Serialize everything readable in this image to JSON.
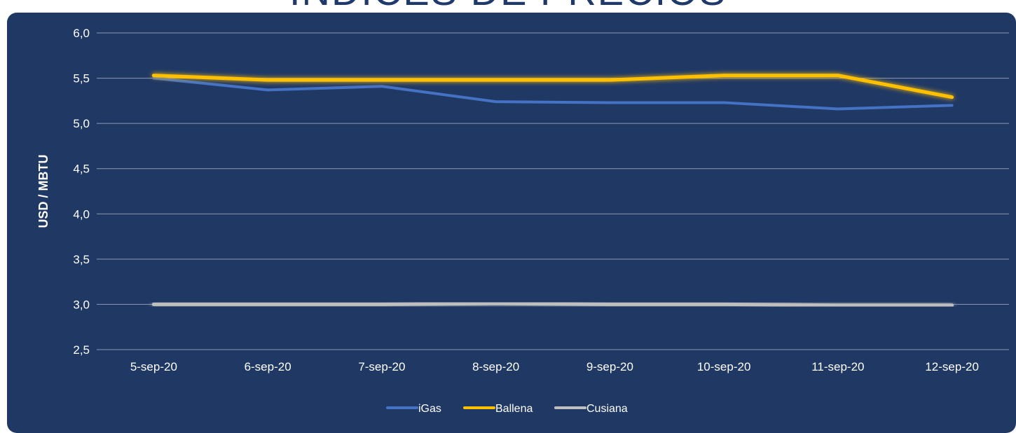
{
  "page": {
    "title": "INDICES DE PRECIOS"
  },
  "chart_data": {
    "type": "line",
    "title": "INDICES DE PRECIOS",
    "xlabel": "",
    "ylabel": "USD / MBTU",
    "ylim": [
      2.5,
      6.0
    ],
    "y_ticks": [
      2.5,
      3.0,
      3.5,
      4.0,
      4.5,
      5.0,
      5.5,
      6.0
    ],
    "y_tick_labels": [
      "2,5",
      "3,0",
      "3,5",
      "4,0",
      "4,5",
      "5,0",
      "5,5",
      "6,0"
    ],
    "categories": [
      "5-sep-20",
      "6-sep-20",
      "7-sep-20",
      "8-sep-20",
      "9-sep-20",
      "10-sep-20",
      "11-sep-20",
      "12-sep-20"
    ],
    "grid": true,
    "legend_position": "bottom",
    "series": [
      {
        "name": "iGas",
        "color": "#4472c4",
        "values": [
          5.5,
          5.37,
          5.41,
          5.24,
          5.23,
          5.23,
          5.16,
          5.2
        ]
      },
      {
        "name": "Ballena",
        "color": "#ffc000",
        "values": [
          5.53,
          5.48,
          5.48,
          5.48,
          5.48,
          5.53,
          5.53,
          5.29
        ]
      },
      {
        "name": "Cusiana",
        "color": "#bfbfbf",
        "values": [
          3.0,
          3.0,
          3.0,
          3.01,
          3.0,
          3.0,
          2.99,
          2.99
        ]
      }
    ]
  }
}
